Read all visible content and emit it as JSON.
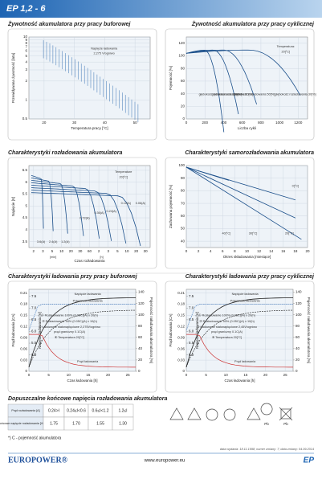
{
  "header": {
    "title": "EP 1,2 - 6"
  },
  "panels": [
    {
      "title": "Żywotność akumulatora przy pracy buforowej",
      "xlabel": "Temperatura pracy [°C]",
      "ylabel": "Przewidywana żywotność [lata]",
      "xlim": [
        15,
        55
      ],
      "xticks": [
        20,
        30,
        40,
        50
      ],
      "ylim": [
        0.5,
        10
      ],
      "ylog": true,
      "yticks": [
        0.5,
        1,
        2,
        3,
        4,
        5,
        6,
        7,
        8,
        9,
        10
      ],
      "notes": [
        "Napięcie ładowania",
        "2,275 V/ogniwo"
      ]
    },
    {
      "title": "Żywotność akumulatora przy pracy cyklicznej",
      "xlabel": "Liczba cykli",
      "ylabel": "Pojemność [%]",
      "xlim": [
        0,
        1300
      ],
      "xticks": [
        0,
        200,
        400,
        600,
        800,
        1000,
        1200
      ],
      "ylim": [
        0,
        130
      ],
      "yticks": [
        0,
        20,
        40,
        60,
        80,
        100,
        120
      ],
      "notes": [
        "Temperatura:",
        "20[°C]",
        "głębokość rozładowania 100[%]",
        "głębokość rozładowania 80[%]",
        "głębokość rozładowania 50[%]",
        "głębokość rozładowania 30[%]"
      ]
    },
    {
      "title": "Charakterystyki rozładowania akumulatora",
      "xlabel": "Czas rozładowania",
      "ylabel": "Napięcie [V]",
      "xcats": [
        "2",
        "3",
        "5",
        "10",
        "20",
        "30",
        "60",
        "2",
        "3",
        "5",
        "10",
        "20",
        "30"
      ],
      "ylim": [
        3.25,
        6.7
      ],
      "yticks": [
        3.5,
        4,
        4.5,
        5,
        5.5,
        6,
        6.5
      ],
      "notes": [
        "Temperature",
        "20[°C]",
        "3.6(A)",
        "2.4(A)",
        "1.2(A)",
        "0.72(A)",
        "0.36(A)",
        "0.24(A)",
        "0.12(A)",
        "0.06(A)",
        "[min]",
        "[h]"
      ]
    },
    {
      "title": "Charakterystyki samorozładowania akumulatora",
      "xlabel": "Okres składowania [miesiące]",
      "ylabel": "Zachowana pojemność [%]",
      "xlim": [
        0,
        20
      ],
      "xticks": [
        0,
        2,
        4,
        6,
        8,
        10,
        12,
        14,
        16,
        18,
        20
      ],
      "ylim": [
        35,
        100
      ],
      "yticks": [
        40,
        50,
        60,
        70,
        80,
        90,
        100
      ],
      "notes": [
        "0[°C]",
        "40[°C]",
        "30[°C]",
        "20[°C]"
      ]
    },
    {
      "title": "Charakterystyki ładowania przy pracy buforowej",
      "xlabel": "Czas ładowania [h]",
      "ylabel": "Prąd ładowania [CA]",
      "y2label": "Pojemność naładowania akumulatora [%]",
      "vlabel": "Napięcie ładowania [V]",
      "xlim": [
        0,
        27
      ],
      "xticks": [
        0,
        5,
        10,
        15,
        20,
        25
      ],
      "ylim": [
        0,
        0.22
      ],
      "yticks": [
        0,
        0.03,
        0.06,
        0.09,
        0.12,
        0.15,
        0.18,
        0.21
      ],
      "y2lim": [
        0,
        145
      ],
      "y2ticks": [
        0,
        20,
        40,
        60,
        80,
        100,
        120,
        140
      ],
      "vlim": [
        4.3,
        7.8
      ],
      "vticks": [
        {
          "value": 5,
          "label": "5.0"
        },
        5.5,
        {
          "value": 6,
          "label": "6.0"
        },
        6.5,
        {
          "value": 7,
          "label": "7.0"
        },
        7.5
      ],
      "notes": [
        "Napięcie ładowania",
        "Pojemność ładowania",
        "Prąd ładowania",
        "① Rozładowanie 100% (0.05C)(A) x 20(h)",
        "② Rozładowanie 50% (0.05C)(A) x 10(h)",
        "③ Ładowanie stałonapięciowe 2,275V/ogniwo",
        "prąd graniczny 0.1C(A)",
        "④ Temperatura 20[°C]"
      ]
    },
    {
      "title": "Charakterystyki ładowania przy pracy cyklicznej",
      "xlabel": "Czas ładowania [h]",
      "ylabel": "Prąd ładowania [CA]",
      "y2label": "Pojemność naładowania akumulatora [%]",
      "vlabel": "Napięcie ładowania [V]",
      "xlim": [
        0,
        27
      ],
      "xticks": [
        0,
        5,
        10,
        15,
        20,
        25
      ],
      "ylim": [
        0,
        0.22
      ],
      "yticks": [
        0,
        0.03,
        0.06,
        0.09,
        0.12,
        0.15,
        0.18,
        0.21
      ],
      "y2lim": [
        0,
        145
      ],
      "y2ticks": [
        0,
        20,
        40,
        60,
        80,
        100,
        120,
        140
      ],
      "vlim": [
        4.3,
        7.8
      ],
      "vticks": [
        {
          "value": 5,
          "label": "5.0"
        },
        5.5,
        {
          "value": 6,
          "label": "6.0"
        },
        6.5,
        {
          "value": 7,
          "label": "7.0"
        },
        7.5
      ],
      "notes": [
        "Napięcie ładowania",
        "Pojemność ładowania",
        "Prąd ładowania",
        "① Rozładowanie 100% (0.05C)(A) x 20(h)",
        "② Rozładowanie 50% (0.05C)(A) x 10(h)",
        "③ Ładowanie stałonapięciowe 2,45V/ogniwo",
        "prąd graniczny 0.1C(A)",
        "④ Temperatura 20[°C]"
      ]
    }
  ],
  "table": {
    "title": "Dopuszczalne końcowe napięcia rozładowania akumulatora",
    "rows": [
      [
        "Prąd rozładowania [A]",
        "0.24>I",
        "0.24≤I<0.6",
        "0.6≤I<1.2",
        "1.2≤I"
      ],
      [
        "Końcowe napięcie rozładowania [V/ogniwo]",
        "1.75",
        "1.70",
        "1.55",
        "1.30"
      ]
    ],
    "note": "*) C - pojemność akumulatora"
  },
  "icons": {
    "labels": [
      "Pb",
      "Pb"
    ]
  },
  "footer": {
    "date": "data wydania: 18.11.1998; numer zmiany: 7; data zmiany: 04.09.2014",
    "brand": "EUROPOWER®",
    "url": "www.europower.eu",
    "code": "EP"
  }
}
